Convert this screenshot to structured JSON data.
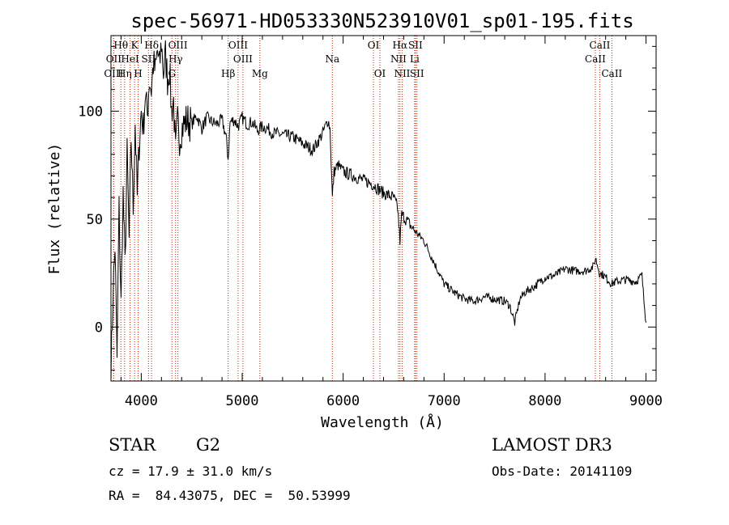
{
  "chart_data": {
    "type": "line",
    "title": "spec-56971-HD053330N523910V01_sp01-195.fits",
    "xlabel": "Wavelength (Å)",
    "ylabel": "Flux (relative)",
    "xlim": [
      3700,
      9100
    ],
    "ylim": [
      -25,
      135
    ],
    "xticks": [
      4000,
      5000,
      6000,
      7000,
      8000,
      9000
    ],
    "yticks": [
      0,
      50,
      100
    ],
    "line_color": "#000000",
    "marker_color": "#cc2200",
    "series": [
      {
        "x": [
          3700,
          3720,
          3740,
          3760,
          3780,
          3800,
          3820,
          3840,
          3860,
          3880,
          3900,
          3920,
          3940,
          3960,
          3980,
          4000,
          4020,
          4040,
          4060,
          4080,
          4100,
          4120,
          4140,
          4160,
          4180,
          4200,
          4220,
          4240,
          4260,
          4280,
          4300,
          4320,
          4340,
          4360,
          4380,
          4400,
          4450,
          4500,
          4550,
          4600,
          4650,
          4700,
          4750,
          4800,
          4840,
          4861,
          4880,
          4920,
          4960,
          5000,
          5050,
          5100,
          5150,
          5200,
          5250,
          5300,
          5400,
          5500,
          5600,
          5700,
          5750,
          5800,
          5850,
          5870,
          5893,
          5910,
          5950,
          6000,
          6100,
          6200,
          6300,
          6400,
          6500,
          6540,
          6563,
          6580,
          6620,
          6700,
          6800,
          6900,
          7000,
          7100,
          7200,
          7300,
          7400,
          7500,
          7600,
          7650,
          7700,
          7750,
          7800,
          7900,
          8000,
          8100,
          8200,
          8300,
          8400,
          8480,
          8500,
          8540,
          8580,
          8620,
          8660,
          8700,
          8800,
          8900,
          8960,
          8980,
          9000
        ],
        "y": [
          -22,
          15,
          38,
          -15,
          55,
          10,
          62,
          28,
          80,
          40,
          88,
          55,
          95,
          60,
          85,
          100,
          92,
          108,
          98,
          115,
          110,
          122,
          118,
          128,
          120,
          132,
          118,
          126,
          115,
          120,
          100,
          105,
          80,
          95,
          88,
          92,
          96,
          94,
          98,
          92,
          97,
          95,
          94,
          96,
          88,
          78,
          95,
          96,
          93,
          97,
          94,
          95,
          91,
          93,
          92,
          90,
          89,
          88,
          85,
          82,
          86,
          90,
          96,
          92,
          60,
          72,
          75,
          72,
          70,
          68,
          66,
          62,
          60,
          55,
          40,
          52,
          50,
          45,
          40,
          30,
          20,
          16,
          13,
          12,
          14,
          13,
          12,
          10,
          2,
          13,
          16,
          19,
          23,
          24,
          27,
          26,
          26,
          28,
          32,
          25,
          24,
          22,
          20,
          21,
          22,
          21,
          24,
          12,
          2
        ]
      }
    ],
    "line_markers": [
      {
        "label": "Hθ",
        "x": 3798,
        "row": 1
      },
      {
        "label": "OII",
        "x": 3727,
        "row": 2
      },
      {
        "label": "OIII",
        "x": 3727,
        "row": 3
      },
      {
        "label": "K",
        "x": 3934,
        "row": 1
      },
      {
        "label": "HeI",
        "x": 3889,
        "row": 2
      },
      {
        "label": "Hη",
        "x": 3835,
        "row": 3
      },
      {
        "label": "SII",
        "x": 4072,
        "row": 2
      },
      {
        "label": "H",
        "x": 3969,
        "row": 3
      },
      {
        "label": "Hδ",
        "x": 4102,
        "row": 1
      },
      {
        "label": "OIII",
        "x": 4363,
        "row": 1
      },
      {
        "label": "Hγ",
        "x": 4340,
        "row": 2
      },
      {
        "label": "G",
        "x": 4304,
        "row": 3
      },
      {
        "label": "OIII",
        "x": 4959,
        "row": 1
      },
      {
        "label": "OIII",
        "x": 5007,
        "row": 2
      },
      {
        "label": "Hβ",
        "x": 4861,
        "row": 3
      },
      {
        "label": "Mg",
        "x": 5175,
        "row": 3
      },
      {
        "label": "Na",
        "x": 5893,
        "row": 2
      },
      {
        "label": "OI",
        "x": 6300,
        "row": 1
      },
      {
        "label": "OI",
        "x": 6364,
        "row": 3
      },
      {
        "label": "Hα",
        "x": 6563,
        "row": 1
      },
      {
        "label": "SII",
        "x": 6716,
        "row": 1
      },
      {
        "label": "NII",
        "x": 6548,
        "row": 2
      },
      {
        "label": "Li",
        "x": 6708,
        "row": 2
      },
      {
        "label": "NII",
        "x": 6584,
        "row": 3
      },
      {
        "label": "SII",
        "x": 6731,
        "row": 3
      },
      {
        "label": "CaII",
        "x": 8542,
        "row": 1
      },
      {
        "label": "CaII",
        "x": 8498,
        "row": 2
      },
      {
        "label": "CaII",
        "x": 8662,
        "row": 3
      }
    ]
  },
  "info": {
    "object_type": "STAR",
    "subclass": "G2",
    "survey": "LAMOST DR3",
    "redshift": "cz = 17.9 ± 31.0 km/s",
    "obs_date": "Obs-Date: 20141109",
    "coordinates": "RA =  84.43075, DEC =  50.53999"
  }
}
